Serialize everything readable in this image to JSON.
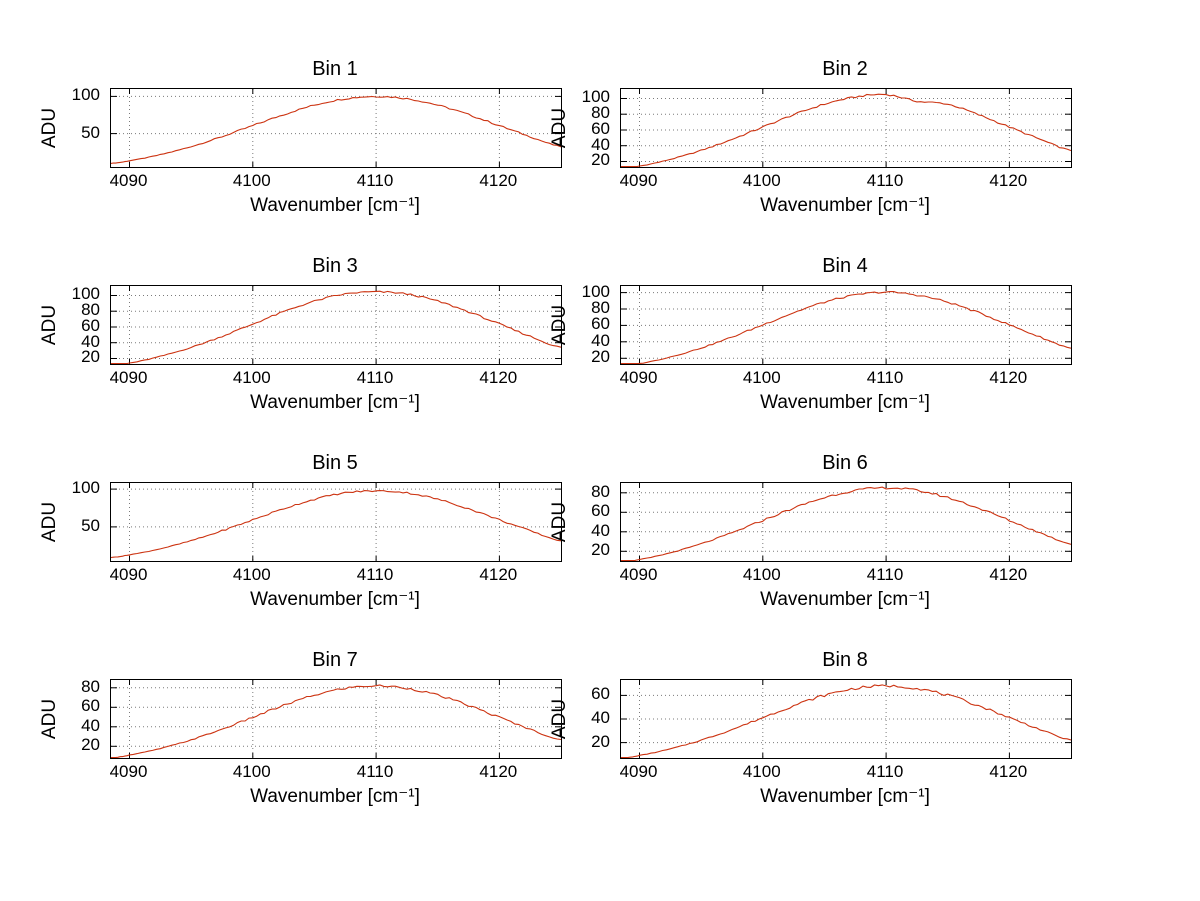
{
  "figure": {
    "background": "#ffffff",
    "line_color": "#cc3311",
    "grid_color": "#7a7a7a",
    "axis_color": "#000000"
  },
  "chart_data": [
    {
      "type": "line",
      "title": "Bin 1",
      "xlabel": "Wavenumber [cm⁻¹]",
      "ylabel": "ADU",
      "xlim": [
        4088.5,
        4125
      ],
      "ylim": [
        5,
        110
      ],
      "xticks": [
        4090,
        4100,
        4110,
        4120
      ],
      "yticks": [
        50,
        100
      ],
      "grid": true,
      "x": [
        4088.5,
        4090,
        4092.5,
        4095,
        4097.5,
        4100,
        4102.5,
        4105,
        4107.5,
        4110,
        4112.5,
        4115,
        4117.5,
        4120,
        4122.5,
        4125
      ],
      "y": [
        9.9,
        13.5,
        21.6,
        32.5,
        45.8,
        60.7,
        75.5,
        88.3,
        96.9,
        100.0,
        97.0,
        88.3,
        75.5,
        60.7,
        45.8,
        32.5
      ]
    },
    {
      "type": "line",
      "title": "Bin 2",
      "xlabel": "Wavenumber [cm⁻¹]",
      "ylabel": "ADU",
      "xlim": [
        4088.5,
        4125
      ],
      "ylim": [
        13,
        112
      ],
      "xticks": [
        4090,
        4100,
        4110,
        4120
      ],
      "yticks": [
        20,
        40,
        60,
        80,
        100
      ],
      "grid": true,
      "x": [
        4088.5,
        4090,
        4092.5,
        4095,
        4097.5,
        4100,
        4102.5,
        4105,
        4107.5,
        4110,
        4112.5,
        4115,
        4117.5,
        4120,
        4122.5,
        4125
      ],
      "y": [
        10.4,
        14.2,
        22.7,
        34.1,
        48.1,
        63.7,
        79.3,
        92.7,
        101.8,
        105.0,
        96.5,
        92.7,
        79.3,
        63.7,
        48.1,
        34.1
      ]
    },
    {
      "type": "line",
      "title": "Bin 3",
      "xlabel": "Wavenumber [cm⁻¹]",
      "ylabel": "ADU",
      "xlim": [
        4088.5,
        4125
      ],
      "ylim": [
        13,
        112
      ],
      "xticks": [
        4090,
        4100,
        4110,
        4120
      ],
      "yticks": [
        20,
        40,
        60,
        80,
        100
      ],
      "grid": true,
      "x": [
        4088.5,
        4090,
        4092.5,
        4095,
        4097.5,
        4100,
        4102.5,
        4105,
        4107.5,
        4110,
        4112.5,
        4115,
        4117.5,
        4120,
        4122.5,
        4125
      ],
      "y": [
        10.4,
        14.2,
        22.7,
        34.1,
        48.1,
        63.7,
        79.3,
        92.7,
        101.8,
        104.5,
        101.8,
        92.7,
        79.3,
        63.7,
        48.1,
        34.1
      ]
    },
    {
      "type": "line",
      "title": "Bin 4",
      "xlabel": "Wavenumber [cm⁻¹]",
      "ylabel": "ADU",
      "xlim": [
        4088.5,
        4125
      ],
      "ylim": [
        13,
        108
      ],
      "xticks": [
        4090,
        4100,
        4110,
        4120
      ],
      "yticks": [
        20,
        40,
        60,
        80,
        100
      ],
      "grid": true,
      "x": [
        4088.5,
        4090,
        4092.5,
        4095,
        4097.5,
        4100,
        4102.5,
        4105,
        4107.5,
        4110,
        4112.5,
        4115,
        4117.5,
        4120,
        4122.5,
        4125
      ],
      "y": [
        9.9,
        13.5,
        21.6,
        32.5,
        45.8,
        60.7,
        75.5,
        88.3,
        96.9,
        100.5,
        96.9,
        88.3,
        75.5,
        60.7,
        45.8,
        32.5
      ]
    },
    {
      "type": "line",
      "title": "Bin 5",
      "xlabel": "Wavenumber [cm⁻¹]",
      "ylabel": "ADU",
      "xlim": [
        4088.5,
        4125
      ],
      "ylim": [
        5,
        108
      ],
      "xticks": [
        4090,
        4100,
        4110,
        4120
      ],
      "yticks": [
        50,
        100
      ],
      "grid": true,
      "x": [
        4088.5,
        4090,
        4092.5,
        4095,
        4097.5,
        4100,
        4102.5,
        4105,
        4107.5,
        4110,
        4112.5,
        4115,
        4117.5,
        4120,
        4122.5,
        4125
      ],
      "y": [
        9.7,
        13.3,
        21.2,
        31.8,
        44.9,
        59.4,
        74.0,
        86.5,
        95.0,
        97.5,
        95.0,
        86.5,
        74.0,
        59.4,
        44.9,
        31.8
      ]
    },
    {
      "type": "line",
      "title": "Bin 6",
      "xlabel": "Wavenumber [cm⁻¹]",
      "ylabel": "ADU",
      "xlim": [
        4088.5,
        4125
      ],
      "ylim": [
        10,
        90
      ],
      "xticks": [
        4090,
        4100,
        4110,
        4120
      ],
      "yticks": [
        20,
        40,
        60,
        80
      ],
      "grid": true,
      "x": [
        4088.5,
        4090,
        4092.5,
        4095,
        4097.5,
        4100,
        4102.5,
        4105,
        4107.5,
        4110,
        4112.5,
        4115,
        4117.5,
        4120,
        4122.5,
        4125
      ],
      "y": [
        8.4,
        11.5,
        18.4,
        27.6,
        38.9,
        51.6,
        64.2,
        75.0,
        82.4,
        85.0,
        82.4,
        75.0,
        64.2,
        51.6,
        38.9,
        27.6
      ]
    },
    {
      "type": "line",
      "title": "Bin 7",
      "xlabel": "Wavenumber [cm⁻¹]",
      "ylabel": "ADU",
      "xlim": [
        4088.5,
        4125
      ],
      "ylim": [
        8,
        88
      ],
      "xticks": [
        4090,
        4100,
        4110,
        4120
      ],
      "yticks": [
        20,
        40,
        60,
        80
      ],
      "grid": true,
      "x": [
        4088.5,
        4090,
        4092.5,
        4095,
        4097.5,
        4100,
        4102.5,
        4105,
        4107.5,
        4110,
        4112.5,
        4115,
        4117.5,
        4120,
        4122.5,
        4125
      ],
      "y": [
        8.1,
        11.1,
        17.7,
        26.6,
        37.5,
        49.7,
        61.9,
        72.4,
        79.5,
        82.0,
        79.5,
        72.4,
        61.9,
        49.7,
        37.5,
        26.6
      ]
    },
    {
      "type": "line",
      "title": "Bin 8",
      "xlabel": "Wavenumber [cm⁻¹]",
      "ylabel": "ADU",
      "xlim": [
        4088.5,
        4125
      ],
      "ylim": [
        7,
        73
      ],
      "xticks": [
        4090,
        4100,
        4110,
        4120
      ],
      "yticks": [
        20,
        40,
        60
      ],
      "grid": true,
      "x": [
        4088.5,
        4090,
        4092.5,
        4095,
        4097.5,
        4100,
        4102.5,
        4105,
        4107.5,
        4110,
        4112.5,
        4115,
        4117.5,
        4120,
        4122.5,
        4125
      ],
      "y": [
        6.7,
        9.2,
        14.7,
        22.1,
        31.1,
        41.2,
        51.3,
        60.0,
        65.9,
        68.0,
        65.9,
        60.0,
        51.3,
        41.2,
        31.1,
        22.1
      ]
    }
  ]
}
